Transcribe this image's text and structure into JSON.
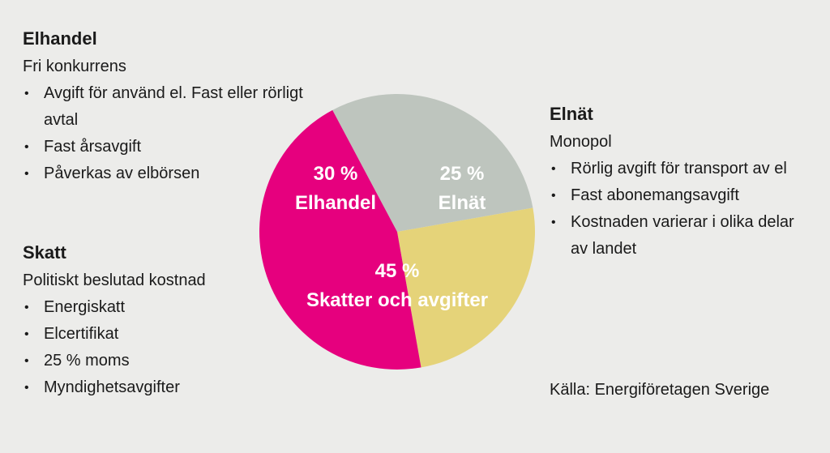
{
  "chart_data": {
    "type": "pie",
    "slices": [
      {
        "name": "Elhandel",
        "value": 30,
        "percent_label": "30 %",
        "label": "Elhandel",
        "color": "#bec5be"
      },
      {
        "name": "Elnät",
        "value": 25,
        "percent_label": "25 %",
        "label": "Elnät",
        "color": "#e5d379"
      },
      {
        "name": "Skatter och avgifter",
        "value": 45,
        "percent_label": "45 %",
        "label": "Skatter och avgifter",
        "color": "#e6007e"
      }
    ]
  },
  "elhandel": {
    "title": "Elhandel",
    "subtitle": "Fri konkurrens",
    "bullets": [
      "Avgift för använd el. Fast eller rörligt avtal",
      "Fast årsavgift",
      "Påverkas av elbörsen"
    ]
  },
  "skatt": {
    "title": "Skatt",
    "subtitle": "Politiskt beslutad kostnad",
    "bullets": [
      "Energiskatt",
      "Elcertifikat",
      "25 % moms",
      "Myndighetsavgifter"
    ]
  },
  "elnat": {
    "title": "Elnät",
    "subtitle": "Monopol",
    "bullets": [
      "Rörlig avgift för transport av el",
      "Fast abonemangsavgift",
      "Kostnaden varierar i olika delar av landet"
    ]
  },
  "source": "Källa: Energiföretagen Sverige",
  "bullet_char": "•"
}
